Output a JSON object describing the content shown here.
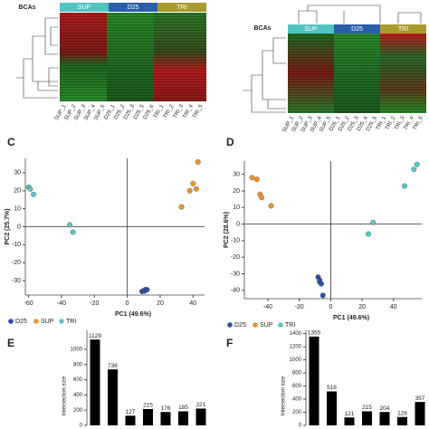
{
  "chart_data": [
    {
      "type": "heatmap",
      "row_label": "BCAs",
      "groups": [
        {
          "name": "SUP",
          "color": "#52c3c3"
        },
        {
          "name": "D25",
          "color": "#2a5ea8"
        },
        {
          "name": "TRI",
          "color": "#a89c2e"
        }
      ],
      "columns": [
        "SUP_1",
        "SUP_2",
        "SUP_3",
        "SUP_4",
        "SUP_5",
        "D25_1",
        "D25_2",
        "D25_3",
        "D25_5",
        "D25_6",
        "TRI_1",
        "TRI_2",
        "TRI_3",
        "TRI_4",
        "TRI_5"
      ]
    },
    {
      "type": "heatmap",
      "row_label": "BCAs",
      "groups": [
        {
          "name": "SUP",
          "color": "#52c3c3"
        },
        {
          "name": "D25",
          "color": "#2a5ea8"
        },
        {
          "name": "TRI",
          "color": "#a89c2e"
        }
      ],
      "columns": [
        "SUP_1",
        "SUP_2",
        "SUP_3",
        "SUP_4",
        "SUP_5",
        "D25_1",
        "D25_2",
        "D25_3",
        "D25_4",
        "D25_5",
        "TRI_1",
        "TRI_2",
        "TRI_3",
        "TRI_4",
        "TRI_5"
      ]
    },
    {
      "type": "scatter",
      "panel": "C",
      "x_label": "PC1 (49.6%)",
      "y_label": "PC2 (25.7%)",
      "xlim": [
        -62,
        47
      ],
      "ylim": [
        -38,
        38
      ],
      "xticks": [
        -60,
        -40,
        -20,
        0,
        20,
        40
      ],
      "yticks": [
        -30,
        -20,
        -10,
        0,
        10,
        20,
        30
      ],
      "series": [
        {
          "name": "D25",
          "color": "#2a4fa0",
          "x": [
            9,
            10,
            11,
            12,
            10.5
          ],
          "values": [
            -36,
            -35.5,
            -35,
            -35,
            -35.8
          ]
        },
        {
          "name": "SUP",
          "color": "#e8962e",
          "x": [
            43,
            40,
            38,
            42,
            33
          ],
          "values": [
            36,
            24,
            20,
            21,
            11
          ]
        },
        {
          "name": "TRI",
          "color": "#5fc4c4",
          "x": [
            -60,
            -57,
            -35,
            -33,
            -59
          ],
          "values": [
            22,
            18,
            1,
            -3,
            21
          ]
        }
      ]
    },
    {
      "type": "scatter",
      "panel": "D",
      "x_label": "PC1 (49.6%)",
      "y_label": "PC2 (28.6%)",
      "xlim": [
        -55,
        58
      ],
      "ylim": [
        -45,
        38
      ],
      "xticks": [
        -40,
        -20,
        0,
        20,
        40
      ],
      "yticks": [
        -40,
        -30,
        -20,
        -10,
        0,
        10,
        20,
        30
      ],
      "series": [
        {
          "name": "D25",
          "color": "#2a4fa0",
          "x": [
            -8,
            -7,
            -6,
            -5,
            -7
          ],
          "values": [
            -32,
            -34,
            -36,
            -43,
            -35
          ]
        },
        {
          "name": "SUP",
          "color": "#e8962e",
          "x": [
            -50,
            -47,
            -45,
            -44,
            -38
          ],
          "values": [
            28,
            27,
            18,
            16,
            11
          ]
        },
        {
          "name": "TRI",
          "color": "#5fc4c4",
          "x": [
            55,
            53,
            47,
            27,
            24
          ],
          "values": [
            36,
            33,
            23,
            1,
            -6
          ]
        }
      ]
    },
    {
      "type": "bar",
      "panel": "E",
      "y_label": "Intersection size",
      "color": "#000000",
      "values": [
        1129,
        736,
        127,
        215,
        176,
        185,
        221
      ],
      "ylim": [
        0,
        1250
      ],
      "yticks": [
        0,
        200,
        400,
        600,
        800,
        1000
      ]
    },
    {
      "type": "bar",
      "panel": "F",
      "y_label": "Intersection size",
      "color": "#000000",
      "values": [
        1355,
        518,
        121,
        215,
        204,
        128,
        357
      ],
      "ylim": [
        0,
        1450
      ],
      "yticks": [
        0,
        200,
        400,
        600,
        800,
        1000,
        1200,
        1400
      ]
    }
  ]
}
